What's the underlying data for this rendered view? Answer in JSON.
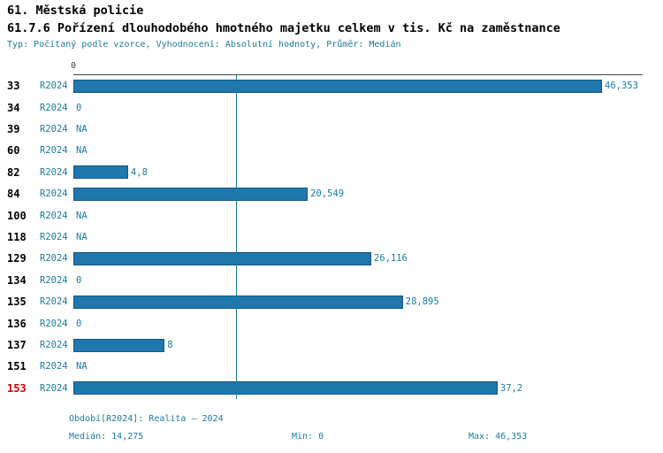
{
  "title": "61. Městská policie",
  "subtitle": "61.7.6 Pořízení dlouhodobého hmotného majetku celkem v tis. Kč na zaměstnance",
  "meta_line": "Typ: Počítaný podle vzorce, Vyhodnocení: Absolutní hodnoty, Průměr: Medián",
  "axis": {
    "zero_label": "0"
  },
  "colors": {
    "accent": "#1a7ba1",
    "bar": "#2077ad",
    "bar_border": "#14567d",
    "highlight": "#cc0000"
  },
  "chart_data": {
    "type": "bar",
    "orientation": "horizontal",
    "period_label": "R2024",
    "categories": [
      "33",
      "34",
      "39",
      "60",
      "82",
      "84",
      "100",
      "118",
      "129",
      "134",
      "135",
      "136",
      "137",
      "151",
      "153"
    ],
    "values": [
      46.353,
      0,
      null,
      null,
      4.8,
      20.549,
      null,
      null,
      26.116,
      0,
      28.895,
      0,
      8,
      null,
      37.2
    ],
    "value_labels": [
      "46,353",
      "0",
      "NA",
      "NA",
      "4,8",
      "20,549",
      "NA",
      "NA",
      "26,116",
      "0",
      "28,895",
      "0",
      "8",
      "NA",
      "37,2"
    ],
    "highlighted_category": "153",
    "median": 14.275,
    "xlim": [
      0,
      46.353
    ],
    "grid": false,
    "legend": false,
    "median_line": true
  },
  "footer": {
    "period": "Období[R2024]: Realita – 2024",
    "median": "Medián: 14,275",
    "min": "Min: 0",
    "max": "Max: 46,353"
  }
}
